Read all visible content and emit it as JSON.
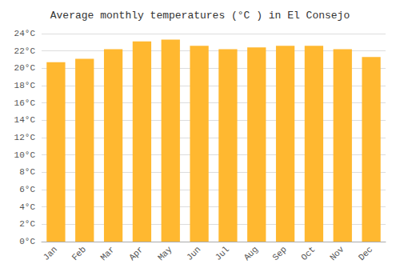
{
  "chart_data": {
    "type": "bar",
    "title": "Average monthly temperatures (°C ) in El Consejo",
    "categories": [
      "Jan",
      "Feb",
      "Mar",
      "Apr",
      "May",
      "Jun",
      "Jul",
      "Aug",
      "Sep",
      "Oct",
      "Nov",
      "Dec"
    ],
    "values": [
      20.7,
      21.1,
      22.2,
      23.1,
      23.3,
      22.6,
      22.2,
      22.4,
      22.6,
      22.6,
      22.2,
      21.3
    ],
    "color": "#FFB830",
    "ylim": [
      0,
      24
    ],
    "yticks": [
      {
        "value": 0,
        "label": "0°C"
      },
      {
        "value": 2,
        "label": "2°C"
      },
      {
        "value": 4,
        "label": "4°C"
      },
      {
        "value": 6,
        "label": "6°C"
      },
      {
        "value": 8,
        "label": "8°C"
      },
      {
        "value": 10,
        "label": "10°C"
      },
      {
        "value": 12,
        "label": "12°C"
      },
      {
        "value": 14,
        "label": "14°C"
      },
      {
        "value": 16,
        "label": "16°C"
      },
      {
        "value": 18,
        "label": "18°C"
      },
      {
        "value": 20,
        "label": "20°C"
      },
      {
        "value": 22,
        "label": "22°C"
      },
      {
        "value": 24,
        "label": "24°C"
      }
    ],
    "grid": true
  }
}
